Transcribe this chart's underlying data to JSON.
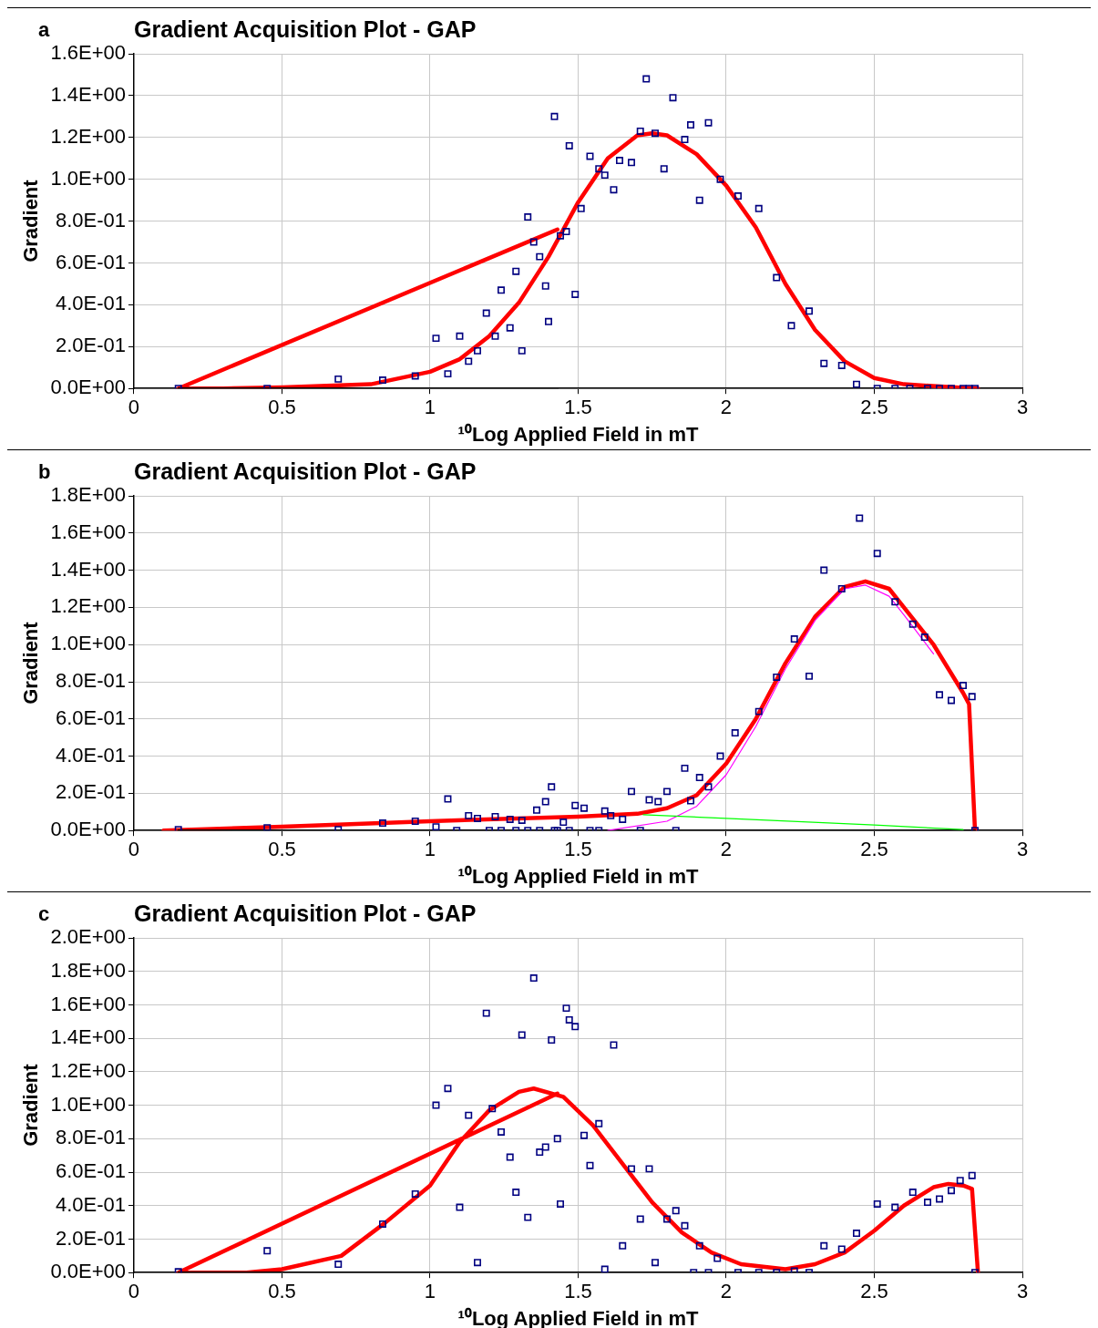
{
  "chart_data": [
    {
      "type": "scatter",
      "title": "Gradient Acquisition Plot - GAP",
      "xlabel": "¹⁰Log Applied Field in mT",
      "ylabel": "Gradient",
      "annotations": [
        "a"
      ],
      "xlim": [
        0,
        3
      ],
      "xticks": [
        0,
        0.5,
        1,
        1.5,
        2,
        2.5,
        3
      ],
      "ylim": [
        0,
        1.6
      ],
      "yticks": [
        {
          "value": 0,
          "label": "0.0E+00"
        },
        {
          "value": 0.2,
          "label": "2.0E-01"
        },
        {
          "value": 0.4,
          "label": "4.0E-01"
        },
        {
          "value": 0.6,
          "label": "6.0E-01"
        },
        {
          "value": 0.8,
          "label": "8.0E-01"
        },
        {
          "value": 1.0,
          "label": "1.0E+00"
        },
        {
          "value": 1.2,
          "label": "1.2E+00"
        },
        {
          "value": 1.4,
          "label": "1.4E+00"
        },
        {
          "value": 1.6,
          "label": "1.6E+00"
        }
      ],
      "grid": true,
      "legend": false,
      "series": [
        {
          "type": "line",
          "color": "#000000",
          "x": [
            0.15,
            1.43
          ],
          "values": [
            0,
            0
          ]
        },
        {
          "type": "line",
          "color": "#ff0000",
          "x": [
            1.43,
            0.15,
            0.3,
            0.5,
            0.8,
            1.0,
            1.1,
            1.2,
            1.3,
            1.4,
            1.5,
            1.6,
            1.7,
            1.75,
            1.8,
            1.9,
            2.0,
            2.1,
            2.2,
            2.3,
            2.4,
            2.5,
            2.6,
            2.8,
            2.85
          ],
          "values": [
            0.76,
            0,
            0,
            0.005,
            0.02,
            0.08,
            0.14,
            0.25,
            0.41,
            0.63,
            0.89,
            1.1,
            1.21,
            1.22,
            1.21,
            1.12,
            0.97,
            0.77,
            0.5,
            0.28,
            0.13,
            0.05,
            0.02,
            0.003,
            0
          ]
        },
        {
          "type": "scatter",
          "marker": "square",
          "color": "#000080",
          "x": [
            0.15,
            0.45,
            0.69,
            0.84,
            0.95,
            1.02,
            1.06,
            1.1,
            1.13,
            1.16,
            1.19,
            1.22,
            1.24,
            1.27,
            1.29,
            1.31,
            1.33,
            1.35,
            1.37,
            1.39,
            1.4,
            1.42,
            1.44,
            1.46,
            1.47,
            1.49,
            1.51,
            1.54,
            1.57,
            1.59,
            1.62,
            1.64,
            1.68,
            1.71,
            1.73,
            1.76,
            1.79,
            1.82,
            1.86,
            1.88,
            1.91,
            1.94,
            1.98,
            2.04,
            2.11,
            2.17,
            2.22,
            2.28,
            2.33,
            2.39,
            2.44,
            2.51,
            2.57,
            2.62,
            2.68,
            2.72,
            2.76,
            2.8,
            2.82,
            2.84
          ],
          "values": [
            0,
            0,
            0.045,
            0.04,
            0.06,
            0.24,
            0.07,
            0.25,
            0.13,
            0.18,
            0.36,
            0.25,
            0.47,
            0.29,
            0.56,
            0.18,
            0.82,
            0.7,
            0.63,
            0.49,
            0.32,
            1.3,
            0.73,
            0.75,
            1.16,
            0.45,
            0.86,
            1.11,
            1.05,
            1.02,
            0.95,
            1.09,
            1.08,
            1.23,
            1.48,
            1.22,
            1.05,
            1.39,
            1.19,
            1.26,
            0.9,
            1.27,
            1.0,
            0.92,
            0.86,
            0.53,
            0.3,
            0.37,
            0.12,
            0.11,
            0.02,
            0,
            0,
            0,
            0,
            0,
            0,
            0,
            0,
            0
          ]
        }
      ]
    },
    {
      "type": "scatter",
      "title": "Gradient Acquisition Plot - GAP",
      "xlabel": "¹⁰Log Applied Field in mT",
      "ylabel": "Gradient",
      "annotations": [
        "b"
      ],
      "xlim": [
        0,
        3
      ],
      "xticks": [
        0,
        0.5,
        1,
        1.5,
        2,
        2.5,
        3
      ],
      "ylim": [
        0,
        1.8
      ],
      "yticks": [
        {
          "value": 0,
          "label": "0.0E+00"
        },
        {
          "value": 0.2,
          "label": "2.0E-01"
        },
        {
          "value": 0.4,
          "label": "4.0E-01"
        },
        {
          "value": 0.6,
          "label": "6.0E-01"
        },
        {
          "value": 0.8,
          "label": "8.0E-01"
        },
        {
          "value": 1.0,
          "label": "1.0E+00"
        },
        {
          "value": 1.2,
          "label": "1.2E+00"
        },
        {
          "value": 1.4,
          "label": "1.4E+00"
        },
        {
          "value": 1.6,
          "label": "1.6E+00"
        },
        {
          "value": 1.8,
          "label": "1.8E+00"
        }
      ],
      "grid": true,
      "legend": false,
      "series": [
        {
          "type": "line",
          "color": "#000000",
          "x": [
            0.15,
            2.84
          ],
          "values": [
            0,
            0
          ]
        },
        {
          "type": "line",
          "color": "#ff0000",
          "x": [
            0.1,
            0.5,
            1.0,
            1.5,
            1.7,
            1.8,
            1.9,
            2.0,
            2.1,
            2.2,
            2.3,
            2.4,
            2.47,
            2.55,
            2.6,
            2.7,
            2.8,
            2.82,
            2.84
          ],
          "values": [
            0,
            0.02,
            0.05,
            0.075,
            0.09,
            0.12,
            0.19,
            0.36,
            0.6,
            0.9,
            1.15,
            1.31,
            1.34,
            1.3,
            1.2,
            1.0,
            0.74,
            0.68,
            0
          ]
        },
        {
          "type": "line",
          "color": "#00ff00",
          "x": [
            1.72,
            2.0,
            2.5,
            2.8
          ],
          "values": [
            0.085,
            0.065,
            0.03,
            0.005
          ]
        },
        {
          "type": "line",
          "color": "#ff00ff",
          "x": [
            1.6,
            1.8,
            1.9,
            2.0,
            2.1,
            2.2,
            2.3,
            2.4,
            2.47,
            2.55,
            2.6,
            2.7
          ],
          "values": [
            0,
            0.05,
            0.13,
            0.3,
            0.56,
            0.87,
            1.13,
            1.3,
            1.32,
            1.26,
            1.16,
            0.95
          ]
        },
        {
          "type": "scatter",
          "marker": "square",
          "color": "#000080",
          "x": [
            0.15,
            0.45,
            0.69,
            0.84,
            0.95,
            1.02,
            1.06,
            1.09,
            1.13,
            1.16,
            1.2,
            1.22,
            1.24,
            1.27,
            1.29,
            1.31,
            1.33,
            1.36,
            1.37,
            1.39,
            1.41,
            1.42,
            1.43,
            1.45,
            1.47,
            1.49,
            1.52,
            1.54,
            1.57,
            1.59,
            1.61,
            1.65,
            1.68,
            1.71,
            1.74,
            1.77,
            1.8,
            1.83,
            1.86,
            1.88,
            1.91,
            1.94,
            1.98,
            2.03,
            2.11,
            2.17,
            2.23,
            2.28,
            2.33,
            2.39,
            2.45,
            2.51,
            2.57,
            2.63,
            2.67,
            2.72,
            2.76,
            2.8,
            2.83,
            2.84
          ],
          "values": [
            0.005,
            0.015,
            0.005,
            0.04,
            0.05,
            0.02,
            0.17,
            0,
            0.08,
            0.065,
            0,
            0.075,
            0,
            0.06,
            0,
            0.055,
            0,
            0.11,
            0,
            0.155,
            0.235,
            0,
            0,
            0.045,
            0,
            0.135,
            0.12,
            0,
            0,
            0.105,
            0.08,
            0.06,
            0.21,
            0,
            0.165,
            0.155,
            0.21,
            0,
            0.335,
            0.16,
            0.285,
            0.235,
            0.4,
            0.525,
            0.64,
            0.825,
            1.03,
            0.83,
            1.4,
            1.3,
            1.68,
            1.49,
            1.23,
            1.11,
            1.04,
            0.73,
            0.7,
            0.78,
            0.72,
            0
          ]
        }
      ]
    },
    {
      "type": "scatter",
      "title": "Gradient Acquisition Plot - GAP",
      "xlabel": "¹⁰Log Applied Field in mT",
      "ylabel": "Gradient",
      "annotations": [
        "c"
      ],
      "xlim": [
        0,
        3
      ],
      "xticks": [
        0,
        0.5,
        1,
        1.5,
        2,
        2.5,
        3
      ],
      "ylim": [
        0,
        2.0
      ],
      "yticks": [
        {
          "value": 0,
          "label": "0.0E+00"
        },
        {
          "value": 0.2,
          "label": "2.0E-01"
        },
        {
          "value": 0.4,
          "label": "4.0E-01"
        },
        {
          "value": 0.6,
          "label": "6.0E-01"
        },
        {
          "value": 0.8,
          "label": "8.0E-01"
        },
        {
          "value": 1.0,
          "label": "1.0E+00"
        },
        {
          "value": 1.2,
          "label": "1.2E+00"
        },
        {
          "value": 1.4,
          "label": "1.4E+00"
        },
        {
          "value": 1.6,
          "label": "1.6E+00"
        },
        {
          "value": 1.8,
          "label": "1.8E+00"
        },
        {
          "value": 2.0,
          "label": "2.0E+00"
        }
      ],
      "grid": true,
      "legend": false,
      "series": [
        {
          "type": "line",
          "color": "#000000",
          "x": [
            0.15,
            2.84
          ],
          "values": [
            0,
            0
          ]
        },
        {
          "type": "line",
          "color": "#ff0000",
          "x": [
            1.43,
            0.15,
            0.38,
            0.5,
            0.7,
            0.85,
            1.0,
            1.1,
            1.2,
            1.3,
            1.35,
            1.45,
            1.55,
            1.65,
            1.75,
            1.85,
            1.95,
            2.05,
            2.2,
            2.3,
            2.4,
            2.5,
            2.6,
            2.7,
            2.75,
            2.8,
            2.83,
            2.85
          ],
          "values": [
            1.07,
            0,
            0,
            0.02,
            0.1,
            0.3,
            0.52,
            0.78,
            0.97,
            1.08,
            1.1,
            1.05,
            0.88,
            0.65,
            0.42,
            0.24,
            0.12,
            0.05,
            0.02,
            0.05,
            0.12,
            0.25,
            0.4,
            0.51,
            0.53,
            0.52,
            0.5,
            0
          ]
        },
        {
          "type": "scatter",
          "marker": "square",
          "color": "#000080",
          "x": [
            0.15,
            0.45,
            0.69,
            0.84,
            0.95,
            1.02,
            1.06,
            1.1,
            1.13,
            1.16,
            1.19,
            1.21,
            1.24,
            1.27,
            1.29,
            1.31,
            1.33,
            1.35,
            1.37,
            1.39,
            1.41,
            1.43,
            1.44,
            1.46,
            1.47,
            1.49,
            1.52,
            1.54,
            1.57,
            1.59,
            1.62,
            1.65,
            1.68,
            1.71,
            1.74,
            1.76,
            1.8,
            1.83,
            1.86,
            1.89,
            1.91,
            1.94,
            1.97,
            2.04,
            2.11,
            2.17,
            2.23,
            2.28,
            2.33,
            2.39,
            2.44,
            2.51,
            2.57,
            2.63,
            2.68,
            2.72,
            2.76,
            2.79,
            2.83,
            2.84
          ],
          "values": [
            0.005,
            0.13,
            0.05,
            0.29,
            0.47,
            1.0,
            1.1,
            0.39,
            0.94,
            0.06,
            1.55,
            0.98,
            0.84,
            0.69,
            0.48,
            1.42,
            0.33,
            1.76,
            0.72,
            0.75,
            1.39,
            0.8,
            0.41,
            1.58,
            1.51,
            1.47,
            0.82,
            0.64,
            0.89,
            0.02,
            1.36,
            0.16,
            0.62,
            0.32,
            0.62,
            0.06,
            0.32,
            0.37,
            0.28,
            0,
            0.16,
            0,
            0.085,
            0,
            0,
            0,
            0.01,
            0,
            0.16,
            0.14,
            0.235,
            0.41,
            0.39,
            0.48,
            0.42,
            0.44,
            0.49,
            0.55,
            0.58,
            0
          ]
        }
      ]
    }
  ]
}
